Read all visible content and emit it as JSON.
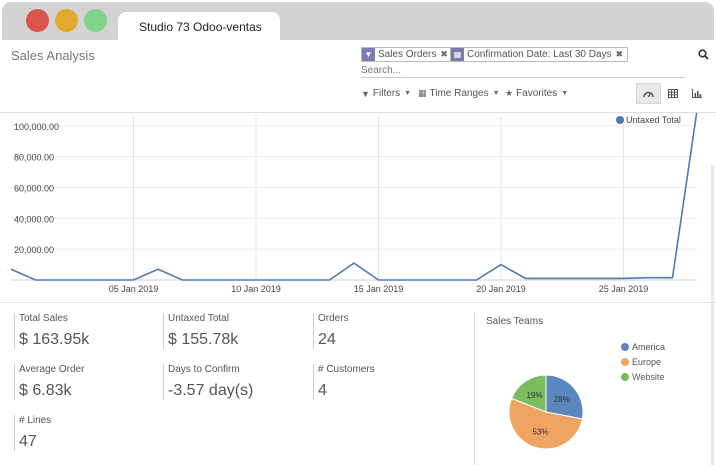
{
  "window": {
    "tab_title": "Studio 73 Odoo-ventas"
  },
  "header": {
    "title": "Sales Analysis",
    "facets": [
      "Sales Orders",
      "Confirmation Date: Last 30 Days"
    ],
    "search_placeholder": "Search...",
    "filters_label": "Filters",
    "time_ranges_label": "Time Ranges",
    "favorites_label": "Favorites"
  },
  "colors": {
    "primary": "#7c7bad",
    "series": "#4a7bb5",
    "america": "#5b87bf",
    "europe": "#f0a461",
    "website": "#7bbc61"
  },
  "chart_data": {
    "type": "line",
    "title": "",
    "xlabel": "",
    "ylabel": "",
    "ylim": [
      0,
      120000
    ],
    "y_ticks": [
      20000,
      40000,
      60000,
      80000,
      100000
    ],
    "y_tick_labels": [
      "20,000.00",
      "40,000.00",
      "60,000.00",
      "80,000.00",
      "100,000.00"
    ],
    "x_tick_labels": [
      "05 Jan 2019",
      "10 Jan 2019",
      "15 Jan 2019",
      "20 Jan 2019",
      "25 Jan 2019"
    ],
    "series": [
      {
        "name": "Untaxed Total",
        "x": [
          "31 Dec 2018",
          "01 Jan 2019",
          "02 Jan 2019",
          "03 Jan 2019",
          "04 Jan 2019",
          "05 Jan 2019",
          "06 Jan 2019",
          "07 Jan 2019",
          "08 Jan 2019",
          "09 Jan 2019",
          "10 Jan 2019",
          "11 Jan 2019",
          "12 Jan 2019",
          "13 Jan 2019",
          "14 Jan 2019",
          "15 Jan 2019",
          "16 Jan 2019",
          "17 Jan 2019",
          "18 Jan 2019",
          "19 Jan 2019",
          "20 Jan 2019",
          "21 Jan 2019",
          "22 Jan 2019",
          "23 Jan 2019",
          "24 Jan 2019",
          "25 Jan 2019",
          "26 Jan 2019",
          "27 Jan 2019",
          "28 Jan 2019"
        ],
        "values": [
          7000,
          0,
          0,
          0,
          0,
          0,
          7000,
          0,
          0,
          0,
          0,
          0,
          0,
          0,
          11000,
          0,
          0,
          0,
          0,
          0,
          10000,
          1000,
          1000,
          1000,
          1000,
          1000,
          1500,
          1500,
          110000
        ]
      }
    ],
    "legend": "top-right",
    "grid": true
  },
  "kpis": [
    {
      "label": "Total Sales",
      "value": "$ 163.95k"
    },
    {
      "label": "Untaxed Total",
      "value": "$ 155.78k"
    },
    {
      "label": "Orders",
      "value": "24"
    },
    {
      "label": "Average Order",
      "value": "$ 6.83k"
    },
    {
      "label": "Days to Confirm",
      "value": "-3.57 day(s)"
    },
    {
      "label": "# Customers",
      "value": "4"
    },
    {
      "label": "# Lines",
      "value": "47"
    }
  ],
  "sales_teams": {
    "title": "Sales Teams",
    "slices": [
      {
        "name": "America",
        "label": "28%",
        "value": 28
      },
      {
        "name": "Europe",
        "label": "53%",
        "value": 53
      },
      {
        "name": "Website",
        "label": "19%",
        "value": 19
      }
    ]
  }
}
